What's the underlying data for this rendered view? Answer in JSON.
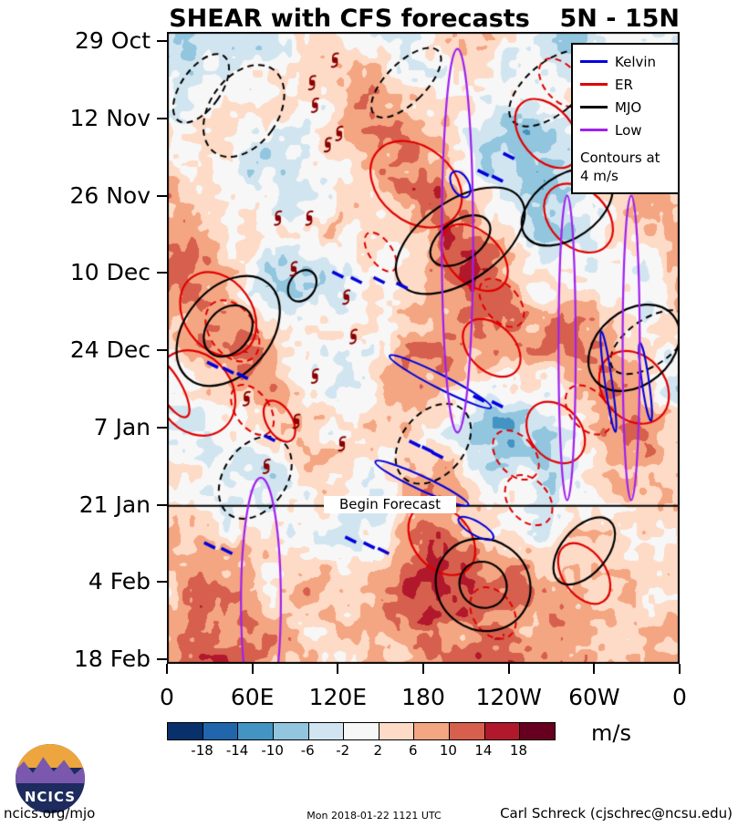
{
  "header": {
    "title": "SHEAR with CFS forecasts",
    "region": "5N - 15N"
  },
  "axes": {
    "y_ticks": [
      "29 Oct",
      "12 Nov",
      "26 Nov",
      "10 Dec",
      "24 Dec",
      "7 Jan",
      "21 Jan",
      "4 Feb",
      "18 Feb"
    ],
    "x_ticks": [
      "0",
      "60E",
      "120E",
      "180",
      "120W",
      "60W",
      "0"
    ]
  },
  "legend": {
    "entries": [
      {
        "label": "Kelvin",
        "color": "#0000dd"
      },
      {
        "label": "ER",
        "color": "#e00000"
      },
      {
        "label": "MJO",
        "color": "#000000"
      },
      {
        "label": "Low",
        "color": "#a020f0"
      }
    ],
    "note_line1": "Contours at",
    "note_line2": "4 m/s"
  },
  "annotations": {
    "begin_forecast": "Begin Forecast"
  },
  "colorbar": {
    "units": "m/s",
    "tick_labels": [
      "-18",
      "-14",
      "-10",
      "-6",
      "-2",
      "2",
      "6",
      "10",
      "14",
      "18"
    ]
  },
  "logo": {
    "text": "NCICS"
  },
  "footer": {
    "left": "ncics.org/mjo",
    "center": "Mon 2018-01-22 1121 UTC",
    "right": "Carl Schreck (cjschrec@ncsu.edu)"
  },
  "chart_data": {
    "type": "heatmap",
    "title": "SHEAR with CFS forecasts",
    "region": "5N - 15N",
    "units": "m/s",
    "x": {
      "label": "longitude",
      "ticks": [
        "0",
        "60E",
        "120E",
        "180",
        "120W",
        "60W",
        "0"
      ],
      "ticks_deg": [
        0,
        60,
        120,
        180,
        240,
        300,
        360
      ]
    },
    "y": {
      "label": "time",
      "ticks": [
        "29 Oct",
        "12 Nov",
        "26 Nov",
        "10 Dec",
        "24 Dec",
        "7 Jan",
        "21 Jan",
        "4 Feb",
        "18 Feb"
      ],
      "start": "29 Oct",
      "end": "18 Feb"
    },
    "levels": [
      -18,
      -14,
      -10,
      -6,
      -2,
      2,
      6,
      10,
      14,
      18
    ],
    "palette": [
      "#08306b",
      "#2166ac",
      "#4393c3",
      "#92c5de",
      "#d1e5f0",
      "#f7f7f7",
      "#fddbc7",
      "#f4a582",
      "#d6604d",
      "#b2182b",
      "#67001f"
    ],
    "begin_forecast_day": 84,
    "grid_lon_deg": [
      0,
      24,
      48,
      72,
      96,
      120,
      144,
      168,
      192,
      216,
      240,
      264,
      288,
      312,
      336,
      360
    ],
    "grid_time_days": [
      0,
      7,
      14,
      21,
      28,
      35,
      42,
      49,
      56,
      63,
      70,
      77,
      84,
      91,
      98,
      105,
      112
    ],
    "values": [
      [
        0,
        -3,
        -4,
        -2,
        1,
        2,
        1,
        -2,
        2,
        4,
        1,
        -5,
        -6,
        -2,
        1,
        0
      ],
      [
        -2,
        -4,
        -2,
        0,
        2,
        5,
        6,
        2,
        0,
        2,
        -3,
        -6,
        -4,
        0,
        2,
        -2
      ],
      [
        0,
        -2,
        0,
        2,
        0,
        3,
        8,
        6,
        2,
        0,
        -4,
        -2,
        0,
        4,
        2,
        0
      ],
      [
        2,
        0,
        -2,
        -4,
        0,
        4,
        6,
        10,
        6,
        -2,
        -6,
        -8,
        -4,
        6,
        8,
        2
      ],
      [
        4,
        2,
        0,
        -2,
        -4,
        0,
        2,
        8,
        12,
        6,
        -8,
        -10,
        -4,
        8,
        10,
        4
      ],
      [
        8,
        4,
        -2,
        -4,
        -2,
        2,
        0,
        4,
        14,
        10,
        0,
        -6,
        -2,
        4,
        6,
        8
      ],
      [
        10,
        8,
        2,
        -4,
        -6,
        -2,
        2,
        2,
        10,
        16,
        6,
        -2,
        2,
        0,
        2,
        10
      ],
      [
        6,
        10,
        6,
        0,
        -4,
        -2,
        4,
        6,
        6,
        12,
        10,
        2,
        6,
        4,
        -2,
        6
      ],
      [
        2,
        6,
        12,
        6,
        -2,
        0,
        2,
        8,
        10,
        8,
        4,
        6,
        10,
        8,
        2,
        2
      ],
      [
        -2,
        2,
        8,
        10,
        2,
        -2,
        4,
        10,
        6,
        2,
        -4,
        2,
        8,
        12,
        6,
        -2
      ],
      [
        0,
        -2,
        2,
        6,
        4,
        0,
        6,
        8,
        2,
        -6,
        -10,
        -4,
        4,
        8,
        10,
        0
      ],
      [
        2,
        0,
        -2,
        0,
        2,
        4,
        2,
        4,
        8,
        -2,
        -8,
        -6,
        0,
        4,
        6,
        2
      ],
      [
        4,
        2,
        0,
        -2,
        0,
        2,
        -2,
        6,
        10,
        6,
        -2,
        -4,
        2,
        0,
        4,
        4
      ],
      [
        6,
        8,
        4,
        0,
        2,
        0,
        2,
        8,
        12,
        10,
        4,
        2,
        6,
        4,
        2,
        6
      ],
      [
        4,
        10,
        8,
        2,
        4,
        2,
        4,
        10,
        14,
        12,
        8,
        6,
        8,
        6,
        4,
        4
      ],
      [
        6,
        12,
        10,
        6,
        2,
        4,
        6,
        8,
        10,
        14,
        10,
        8,
        6,
        8,
        6,
        6
      ],
      [
        8,
        14,
        12,
        8,
        4,
        2,
        4,
        6,
        8,
        12,
        14,
        10,
        8,
        6,
        8,
        8
      ]
    ],
    "contours": {
      "interval_note": "Contours at 4 m/s",
      "mjo_solid": [
        {
          "lon": 206,
          "day": 37,
          "sx": 28,
          "sy": 13,
          "rot": 55
        },
        {
          "lon": 206,
          "day": 37,
          "sx": 14,
          "sy": 6,
          "rot": 55
        },
        {
          "lon": 281,
          "day": 31,
          "sx": 22,
          "sy": 9,
          "rot": 55
        },
        {
          "lon": 328,
          "day": 56,
          "sx": 26,
          "sy": 9,
          "rot": 50
        },
        {
          "lon": 222,
          "day": 98,
          "sx": 34,
          "sy": 8,
          "rot": 35
        },
        {
          "lon": 222,
          "day": 98,
          "sx": 17,
          "sy": 4,
          "rot": 35
        },
        {
          "lon": 43,
          "day": 53,
          "sx": 30,
          "sy": 11,
          "rot": 40
        },
        {
          "lon": 43,
          "day": 53,
          "sx": 15,
          "sy": 5,
          "rot": 40
        },
        {
          "lon": 95,
          "day": 45,
          "sx": 9,
          "sy": 3,
          "rot": 35
        },
        {
          "lon": 293,
          "day": 92,
          "sx": 16,
          "sy": 7,
          "rot": 40
        }
      ],
      "mjo_dashed": [
        {
          "lon": 24,
          "day": 10,
          "sx": 14,
          "sy": 7,
          "rot": 35
        },
        {
          "lon": 54,
          "day": 14,
          "sx": 24,
          "sy": 9,
          "rot": 35
        },
        {
          "lon": 168,
          "day": 9,
          "sx": 14,
          "sy": 8,
          "rot": 45
        },
        {
          "lon": 270,
          "day": 10,
          "sx": 18,
          "sy": 9,
          "rot": 50
        },
        {
          "lon": 339,
          "day": 55,
          "sx": 16,
          "sy": 8,
          "rot": 55
        },
        {
          "lon": 187,
          "day": 73,
          "sx": 22,
          "sy": 8,
          "rot": 40
        },
        {
          "lon": 62,
          "day": 79,
          "sx": 22,
          "sy": 8,
          "rot": 35
        }
      ],
      "er_solid": [
        {
          "lon": 20,
          "day": 64,
          "sx": 26,
          "sy": 8,
          "rot": -35
        },
        {
          "lon": 36,
          "day": 50,
          "sx": 24,
          "sy": 8,
          "rot": -35
        },
        {
          "lon": 175,
          "day": 27,
          "sx": 26,
          "sy": 9,
          "rot": -50
        },
        {
          "lon": 216,
          "day": 40,
          "sx": 18,
          "sy": 7,
          "rot": -45
        },
        {
          "lon": 228,
          "day": 56,
          "sx": 16,
          "sy": 6,
          "rot": -45
        },
        {
          "lon": 267,
          "day": 18,
          "sx": 18,
          "sy": 7,
          "rot": -40
        },
        {
          "lon": 289,
          "day": 33,
          "sx": 20,
          "sy": 7,
          "rot": -45
        },
        {
          "lon": 328,
          "day": 63,
          "sx": 22,
          "sy": 7,
          "rot": -40
        },
        {
          "lon": 273,
          "day": 71,
          "sx": 18,
          "sy": 6,
          "rot": -40
        },
        {
          "lon": 193,
          "day": 90,
          "sx": 20,
          "sy": 7,
          "rot": -40
        },
        {
          "lon": 293,
          "day": 96,
          "sx": 15,
          "sy": 6,
          "rot": -35
        },
        {
          "lon": 79,
          "day": 69,
          "sx": 9,
          "sy": 4,
          "rot": -30
        },
        {
          "lon": 2,
          "day": 63,
          "sx": 8,
          "sy": 6,
          "rot": -30
        }
      ],
      "er_dashed": [
        {
          "lon": 46,
          "day": 53,
          "sx": 16,
          "sy": 6,
          "rot": -35
        },
        {
          "lon": 60,
          "day": 67,
          "sx": 12,
          "sy": 5,
          "rot": -35
        },
        {
          "lon": 235,
          "day": 48,
          "sx": 12,
          "sy": 5,
          "rot": -40
        },
        {
          "lon": 245,
          "day": 75,
          "sx": 13,
          "sy": 5,
          "rot": -40
        },
        {
          "lon": 254,
          "day": 83,
          "sx": 14,
          "sy": 5,
          "rot": -40
        },
        {
          "lon": 296,
          "day": 67,
          "sx": 13,
          "sy": 5,
          "rot": -40
        },
        {
          "lon": 229,
          "day": 103,
          "sx": 14,
          "sy": 5,
          "rot": -35
        },
        {
          "lon": 277,
          "day": 9,
          "sx": 12,
          "sy": 5,
          "rot": -40
        },
        {
          "lon": 150,
          "day": 39,
          "sx": 8,
          "sy": 4,
          "rot": -35
        },
        {
          "lon": 318,
          "day": 15,
          "sx": 10,
          "sy": 4,
          "rot": -40
        }
      ],
      "kelvin_solid": [
        {
          "lon": 192,
          "day": 62,
          "sx": 40,
          "sy": 1.2,
          "rot": 27
        },
        {
          "lon": 179,
          "day": 80,
          "sx": 36,
          "sy": 1.2,
          "rot": 25
        },
        {
          "lon": 206,
          "day": 27,
          "sx": 10,
          "sy": 1.5,
          "rot": 60
        },
        {
          "lon": 310,
          "day": 62,
          "sx": 2.5,
          "sy": 9,
          "rot": -8
        },
        {
          "lon": 336,
          "day": 62,
          "sx": 2.5,
          "sy": 7,
          "rot": -8
        },
        {
          "lon": 217,
          "day": 88,
          "sx": 14,
          "sy": 1.2,
          "rot": 30
        }
      ],
      "kelvin_dashes": [
        {
          "lon": 120,
          "day": 43
        },
        {
          "lon": 133,
          "day": 44
        },
        {
          "lon": 149,
          "day": 44
        },
        {
          "lon": 165,
          "day": 45
        },
        {
          "lon": 222,
          "day": 25
        },
        {
          "lon": 232,
          "day": 26
        },
        {
          "lon": 240,
          "day": 22
        },
        {
          "lon": 174,
          "day": 73
        },
        {
          "lon": 183,
          "day": 74
        },
        {
          "lon": 190,
          "day": 75
        },
        {
          "lon": 32,
          "day": 59
        },
        {
          "lon": 43,
          "day": 60
        },
        {
          "lon": 53,
          "day": 61
        },
        {
          "lon": 30,
          "day": 91
        },
        {
          "lon": 42,
          "day": 92
        },
        {
          "lon": 72,
          "day": 72
        },
        {
          "lon": 129,
          "day": 90
        },
        {
          "lon": 142,
          "day": 91
        },
        {
          "lon": 152,
          "day": 92
        },
        {
          "lon": 219,
          "day": 65
        },
        {
          "lon": 232,
          "day": 66
        }
      ],
      "low": [
        {
          "lon": 204,
          "day": 37,
          "sx": 11,
          "sy": 34,
          "rot": 0
        },
        {
          "lon": 281,
          "day": 56,
          "sx": 6,
          "sy": 27,
          "rot": 0
        },
        {
          "lon": 326,
          "day": 56,
          "sx": 6,
          "sy": 27,
          "rot": 0
        },
        {
          "lon": 66,
          "day": 101,
          "sx": 14,
          "sy": 22,
          "rot": 0
        }
      ]
    },
    "storm_symbols": [
      {
        "lon": 118,
        "day": 5
      },
      {
        "lon": 102,
        "day": 9
      },
      {
        "lon": 104,
        "day": 13
      },
      {
        "lon": 113,
        "day": 20
      },
      {
        "lon": 121,
        "day": 18
      },
      {
        "lon": 78,
        "day": 33
      },
      {
        "lon": 100,
        "day": 33
      },
      {
        "lon": 89,
        "day": 42
      },
      {
        "lon": 126,
        "day": 47
      },
      {
        "lon": 131,
        "day": 54
      },
      {
        "lon": 104,
        "day": 61
      },
      {
        "lon": 56,
        "day": 65
      },
      {
        "lon": 91,
        "day": 69
      },
      {
        "lon": 123,
        "day": 73
      },
      {
        "lon": 70,
        "day": 77
      }
    ]
  }
}
